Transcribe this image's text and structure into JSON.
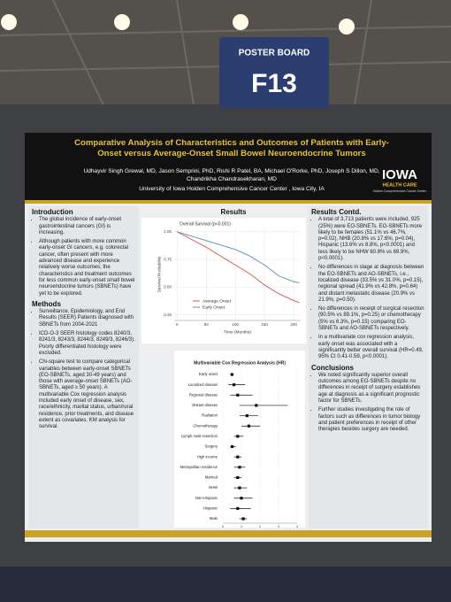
{
  "scene": {
    "sign": {
      "label": "POSTER BOARD",
      "code": "F13"
    }
  },
  "poster": {
    "title": "Comparative Analysis of Characteristics and Outcomes of Patients with Early-Onset versus Average-Onset Small Bowel Neuroendocrine Tumors",
    "authors": "Udhayvir Singh Grewal, MD, Jason Semprini, PhD, Rishi R Patel, BA, Michael O'Rorke, PhD, Joseph S Dillon, MD, Chandrikha Chandrasekharan, MD",
    "affiliation": "University of Iowa Holden Comprehensive Cancer Center , Iowa City, IA",
    "logo": {
      "name": "IOWA",
      "line1": "HEALTH CARE",
      "line2": "Holden Comprehensive Cancer Center"
    },
    "introduction": {
      "heading": "Introduction",
      "items": [
        "The global incidence of early-onset gastrointestinal cancers (GI) is increasing.",
        "Although patients with more common early-onset GI cancers, e.g. colorectal cancer, often present with more advanced disease and experience relatively worse outcomes; the characteristics and treatment outcomes for less common early-onset small bowel neuroendocrine tumors (SBNETs) have yet to be explored."
      ]
    },
    "methods": {
      "heading": "Methods",
      "items": [
        "Surveillance, Epidemiology, and End Results (SEER) Patients diagnosed with SBNETs from 2004-2021",
        "ICD-O-3 SEER histology codes 8240/3, 8241/3, 8243/3, 8244/3, 8249/3, 8246/3). Poorly differentiated histology were excluded.",
        "Chi-square test to compare categorical variables between early-onset SBNETs (EO-SBNETs, aged 30-49 years) and those with average-onset SBNETs (AO-SBNETs, aged ≥ 50 years). A multivariable Cox regression analysis included early onset of disease, sex, race/ethnicity, marital status, urban/rural residence, prior treatments, and disease extent as covariates. KM analysis for survival."
      ]
    },
    "results": {
      "heading": "Results"
    },
    "results_contd": {
      "heading": "Results Contd.",
      "items": [
        "A total of 3,713 patients were included, 925 (25%) were EO-SBNETs. EO-SBNETs more likely to be females (51.1% vs 46.7%, p=0.02), NHB (20.8% vs 17.6%, p=0.04), Hispanic (13.6% vs 8.8%, p<0.0001) and less likely to be NHW 60.8% vs 69.9%, p<0.0001).",
        "No differences in stage at diagnosis between the EO-SBNETs and AO-SBNETs, i.e., localized disease (33.5% vs 31.0%, p=0.15), regional spread (41.9% vs 42.8%, p=0.64) and distant metastatic disease (20.9% vs 21.9%, p=0.50).",
        "No differences in receipt of surgical resection (90.5% vs 89.1%, p=0.25) or chemotherapy (5% vs 6.3%, p=0.15) comparing EO-SBNETs and AO-SBNETs respectively.",
        "In a multivariate cox regression analysis, early onset was associated with a significantly better overall survival (HR=0.49, 95% CI 0.41-0.59, p<0.0001)."
      ]
    },
    "conclusions": {
      "heading": "Conclusions",
      "items": [
        "We noted significantly superior overall outcomes among EO-SBNETs despite no differences in receipt of surgery establishes age at diagnosis as a significant prognostic factor for SBNETs.",
        "Further studies investigating the role of factors such as differences in tumor biology and patient preferences in receipt of other therapies besides surgery are needed."
      ]
    }
  },
  "chart_data": [
    {
      "type": "line",
      "title": "Overall Survival (p<0.001)",
      "xlabel": "Time (Months)",
      "ylabel": "Survival Probability",
      "x": [
        0,
        25,
        50,
        75,
        100,
        125,
        150,
        175,
        200,
        210
      ],
      "series": [
        {
          "name": "Average Onset",
          "color": "#d9534f",
          "values": [
            1,
            0.93,
            0.86,
            0.78,
            0.7,
            0.62,
            0.52,
            0.44,
            0.38,
            0.36
          ]
        },
        {
          "name": "Early Onset",
          "color": "#5b8db8",
          "values": [
            1,
            0.96,
            0.92,
            0.88,
            0.84,
            0.78,
            0.7,
            0.6,
            0.55,
            0.54
          ]
        }
      ],
      "xlim": [
        -5,
        212
      ],
      "xticks": [
        0,
        50,
        100,
        150,
        200
      ],
      "ylim": [
        0.2,
        1.03
      ],
      "yticks": [
        {
          "value": 0.25,
          "label": "0.25"
        },
        {
          "value": 0.5,
          "label": "0.50"
        },
        {
          "value": 0.75,
          "label": "0.75"
        },
        {
          "value": 1,
          "label": "1.00"
        }
      ],
      "grid": true
    },
    {
      "type": "forest",
      "title": "Multivariable Cox Regression Analysis (HR)",
      "categories": [
        "Early onset",
        "Localized disease",
        "Regional disease",
        "Distant disease",
        "Radiation",
        "Chemotherapy",
        "Lymph node resection",
        "Surgery",
        "High income",
        "Metropolitan residence",
        "Married",
        "NHW",
        "Non-Hispanic",
        "Hispanic",
        "Male"
      ],
      "values": [
        0.49,
        0.6,
        0.8,
        1.8,
        1.3,
        1.4,
        0.8,
        0.5,
        0.8,
        0.9,
        0.8,
        0.9,
        1.0,
        0.8,
        1.1
      ],
      "lower": [
        0.41,
        0.3,
        0.4,
        0.9,
        0.9,
        1.0,
        0.6,
        0.4,
        0.6,
        0.6,
        0.6,
        0.6,
        0.6,
        0.4,
        0.9
      ],
      "upper": [
        0.59,
        1.2,
        1.6,
        3.5,
        1.9,
        2.0,
        1.1,
        0.7,
        1.0,
        1.2,
        1.0,
        1.3,
        1.6,
        1.5,
        1.3
      ],
      "color": "#111111",
      "xlim": [
        0,
        4
      ],
      "xticks": [
        0,
        1,
        2,
        3,
        4
      ]
    }
  ]
}
